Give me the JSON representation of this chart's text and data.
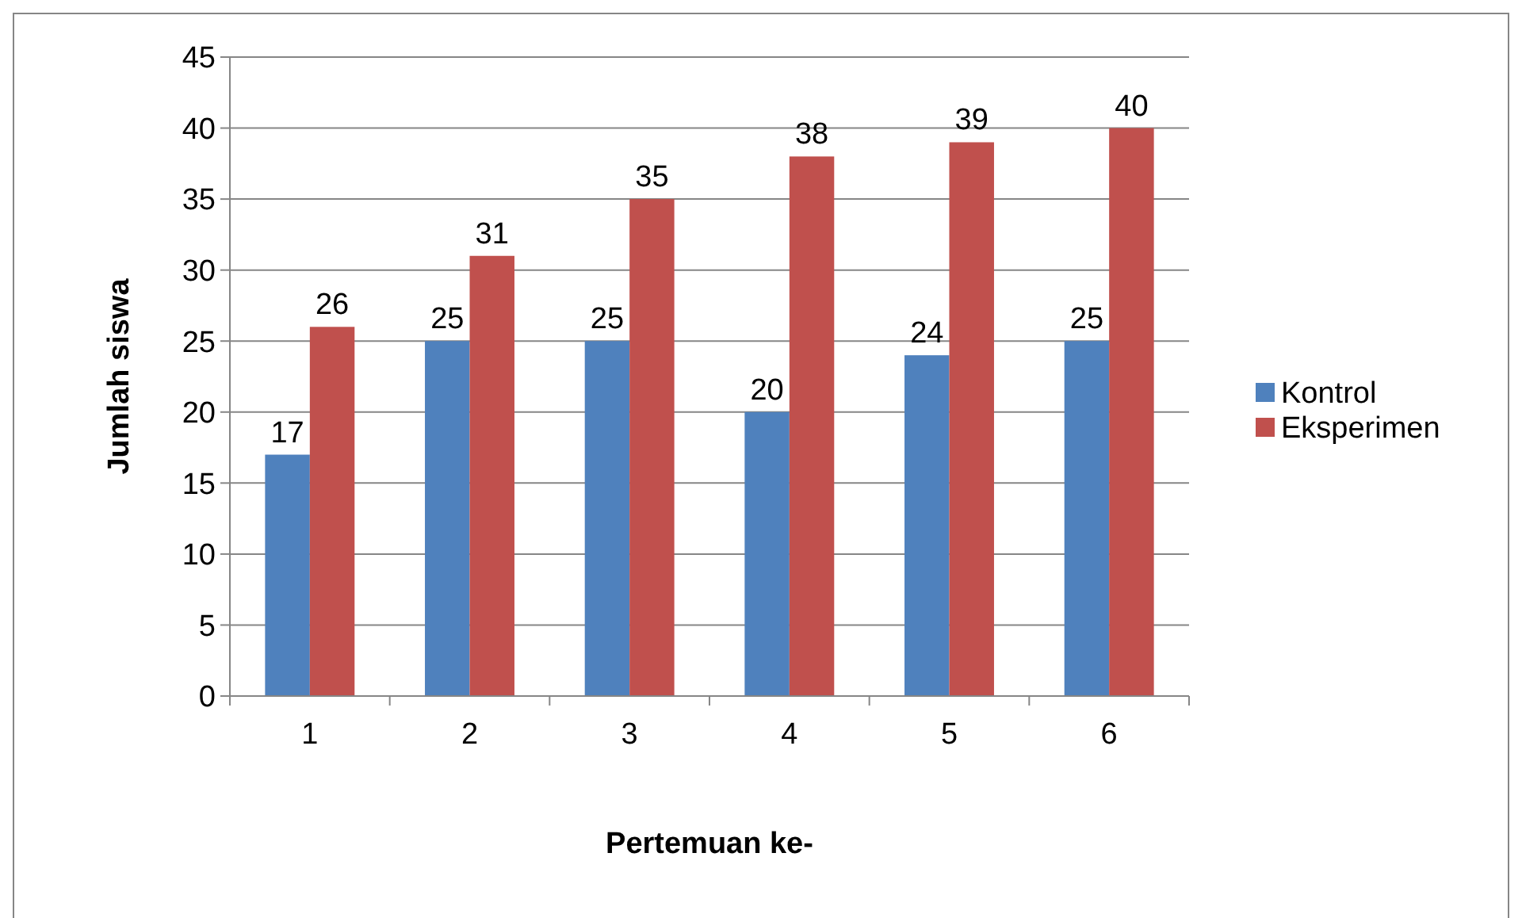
{
  "chart_data": {
    "type": "bar",
    "xlabel": "Pertemuan ke-",
    "ylabel": "Jumlah siswa",
    "categories": [
      "1",
      "2",
      "3",
      "4",
      "5",
      "6"
    ],
    "series": [
      {
        "name": "Kontrol",
        "color": "#4f81bd",
        "values": [
          17,
          25,
          25,
          20,
          24,
          25
        ]
      },
      {
        "name": "Eksperimen",
        "color": "#c0504d",
        "values": [
          26,
          31,
          35,
          38,
          39,
          40
        ]
      }
    ],
    "ylim": [
      0,
      45
    ],
    "yticks": [
      0,
      5,
      10,
      15,
      20,
      25,
      30,
      35,
      40,
      45
    ],
    "grid": "y",
    "legend": "right",
    "data_labels": true
  }
}
